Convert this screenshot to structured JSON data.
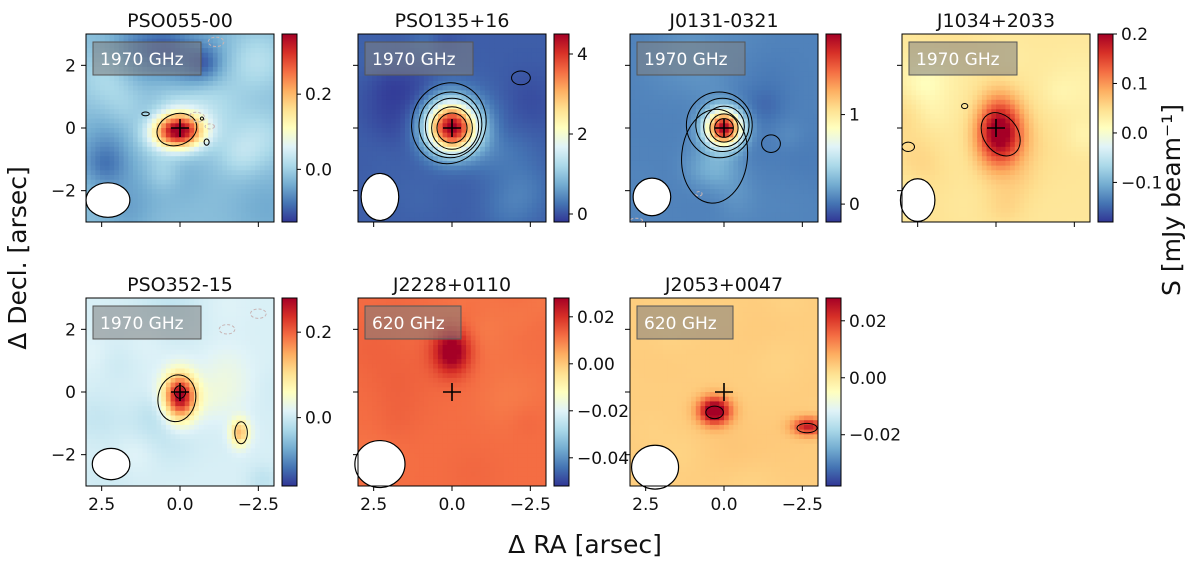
{
  "figure": {
    "xlabel": "Δ RA [arsec]",
    "ylabel": "Δ Decl. [arsec]",
    "cbar_label": "S [mJy beam⁻¹]"
  },
  "axes_common": {
    "xlim": [
      3.0,
      -3.0
    ],
    "ylim": [
      -3.0,
      3.0
    ],
    "xticks": [
      2.5,
      0.0,
      -2.5
    ],
    "xtick_labels": [
      "2.5",
      "0.0",
      "−2.5"
    ],
    "yticks": [
      2,
      0,
      -2
    ],
    "ytick_labels": [
      "2",
      "0",
      "−2"
    ],
    "colormap": [
      "#313695",
      "#4575b4",
      "#74add1",
      "#abd9e9",
      "#e0f3f8",
      "#ffffbf",
      "#fee090",
      "#fdae61",
      "#f46d43",
      "#d73027",
      "#a50026"
    ],
    "contour_color": "#000000",
    "negative_contour_color": "#c8b4b4",
    "beam_color": "#ffffff",
    "marker": "+",
    "label_box_color": "#808080"
  },
  "chart_data": [
    {
      "type": "heatmap",
      "title": "PSO055-00",
      "freq_label": "1970 GHz",
      "vmin": -0.14,
      "vmax": 0.36,
      "cbar_ticks": [
        0.0,
        0.2
      ],
      "cbar_tick_labels": [
        "0.0",
        "0.2"
      ],
      "beam": {
        "x": 2.3,
        "y": -2.3,
        "a": 0.7,
        "b": 0.55,
        "angle": 0
      },
      "sources": [
        {
          "x": 0.05,
          "y": -0.1,
          "amp": 0.38,
          "sx": 0.55,
          "sy": 0.38
        }
      ],
      "contours": [
        {
          "x": 0.1,
          "y": -0.05,
          "rx": 0.65,
          "ry": 0.5,
          "rot": -20
        },
        {
          "x": -0.85,
          "y": -0.45,
          "rx": 0.08,
          "ry": 0.1,
          "rot": 0
        },
        {
          "x": -0.7,
          "y": 0.3,
          "rx": 0.05,
          "ry": 0.05,
          "rot": 0
        },
        {
          "x": 1.1,
          "y": 0.45,
          "rx": 0.12,
          "ry": 0.06,
          "rot": 0
        }
      ],
      "neg_contours": [
        {
          "x": -0.55,
          "y": 0.35,
          "rx": 0.25,
          "ry": 0.15,
          "rot": 10
        },
        {
          "x": -0.95,
          "y": 0.05,
          "rx": 0.15,
          "ry": 0.08,
          "rot": 0
        },
        {
          "x": -1.15,
          "y": 2.75,
          "rx": 0.25,
          "ry": 0.15,
          "rot": 0
        }
      ],
      "seed": 11,
      "noise": 0.22,
      "offset": -0.02
    },
    {
      "type": "heatmap",
      "title": "PSO135+16",
      "freq_label": "1970 GHz",
      "vmin": -0.2,
      "vmax": 4.5,
      "cbar_ticks": [
        0,
        2,
        4
      ],
      "cbar_tick_labels": [
        "0",
        "2",
        "4"
      ],
      "beam": {
        "x": 2.3,
        "y": -2.2,
        "a": 0.6,
        "b": 0.75,
        "angle": 0
      },
      "sources": [
        {
          "x": 0.0,
          "y": 0.0,
          "amp": 4.3,
          "sx": 0.55,
          "sy": 0.55
        }
      ],
      "contours": [
        {
          "x": 0.0,
          "y": 0.0,
          "rx": 0.48,
          "ry": 0.48,
          "rot": 0
        },
        {
          "x": 0.0,
          "y": 0.0,
          "rx": 0.65,
          "ry": 0.68,
          "rot": 0
        },
        {
          "x": 0.0,
          "y": 0.05,
          "rx": 0.85,
          "ry": 0.9,
          "rot": 0
        },
        {
          "x": 0.05,
          "y": 0.1,
          "rx": 1.0,
          "ry": 1.05,
          "rot": 10
        },
        {
          "x": 0.1,
          "y": 0.15,
          "rx": 1.18,
          "ry": 1.3,
          "rot": 15
        },
        {
          "x": -2.2,
          "y": 1.6,
          "rx": 0.3,
          "ry": 0.22,
          "rot": 0
        }
      ],
      "neg_contours": [],
      "seed": 23,
      "noise": 0.08,
      "offset": 0.1
    },
    {
      "type": "heatmap",
      "title": "J0131-0321",
      "freq_label": "1970 GHz",
      "vmin": -0.2,
      "vmax": 1.9,
      "cbar_ticks": [
        0,
        1
      ],
      "cbar_tick_labels": [
        "0",
        "1"
      ],
      "beam": {
        "x": 2.3,
        "y": -2.2,
        "a": 0.6,
        "b": 0.6,
        "angle": 0
      },
      "sources": [
        {
          "x": 0.0,
          "y": 0.0,
          "amp": 1.85,
          "sx": 0.4,
          "sy": 0.4
        },
        {
          "x": 0.3,
          "y": -1.3,
          "amp": 0.2,
          "sx": 0.6,
          "sy": 0.5
        }
      ],
      "contours": [
        {
          "x": 0.0,
          "y": 0.0,
          "rx": 0.3,
          "ry": 0.3,
          "rot": 0
        },
        {
          "x": 0.0,
          "y": 0.0,
          "rx": 0.45,
          "ry": 0.45,
          "rot": 0
        },
        {
          "x": 0.0,
          "y": 0.05,
          "rx": 0.65,
          "ry": 0.65,
          "rot": 0
        },
        {
          "x": 0.05,
          "y": 0.1,
          "rx": 0.85,
          "ry": 0.85,
          "rot": 0
        },
        {
          "x": 0.15,
          "y": 0.1,
          "rx": 1.05,
          "ry": 1.05,
          "rot": 0
        },
        {
          "x": 0.3,
          "y": -0.9,
          "rx": 1.05,
          "ry": 1.5,
          "rot": 5
        },
        {
          "x": -1.5,
          "y": -0.5,
          "rx": 0.3,
          "ry": 0.28,
          "rot": 0
        }
      ],
      "neg_contours": [
        {
          "x": 0.8,
          "y": -2.1,
          "rx": 0.1,
          "ry": 0.07,
          "rot": 0
        },
        {
          "x": 2.8,
          "y": -2.95,
          "rx": 0.2,
          "ry": 0.07,
          "rot": 0
        }
      ],
      "seed": 37,
      "noise": 0.05,
      "offset": 0.06
    },
    {
      "type": "heatmap",
      "title": "J1034+2033",
      "freq_label": "1970 GHz",
      "vmin": -0.18,
      "vmax": 0.2,
      "cbar_ticks": [
        0.2,
        0.1,
        0.0,
        -0.1
      ],
      "cbar_tick_labels": [
        "0.2",
        "0.1",
        "0.0",
        "−0.1"
      ],
      "beam": {
        "x": 2.5,
        "y": -2.3,
        "a": 0.55,
        "b": 0.68,
        "angle": 0
      },
      "sources": [
        {
          "x": -0.1,
          "y": -0.1,
          "amp": 0.18,
          "sx": 0.5,
          "sy": 0.75
        }
      ],
      "contours": [
        {
          "x": -0.15,
          "y": -0.2,
          "rx": 0.55,
          "ry": 0.75,
          "rot": -35
        },
        {
          "x": 1.0,
          "y": 0.7,
          "rx": 0.1,
          "ry": 0.08,
          "rot": 0
        },
        {
          "x": 2.8,
          "y": -0.6,
          "rx": 0.2,
          "ry": 0.15,
          "rot": 0
        }
      ],
      "neg_contours": [],
      "seed": 53,
      "noise": 0.09,
      "offset": 0.04
    },
    {
      "type": "heatmap",
      "title": "PSO352-15",
      "freq_label": "1970 GHz",
      "vmin": -0.16,
      "vmax": 0.28,
      "cbar_ticks": [
        0.2,
        0.0
      ],
      "cbar_tick_labels": [
        "0.2",
        "0.0"
      ],
      "beam": {
        "x": 2.2,
        "y": -2.3,
        "a": 0.6,
        "b": 0.5,
        "angle": 0
      },
      "sources": [
        {
          "x": 0.0,
          "y": -0.15,
          "amp": 0.27,
          "sx": 0.35,
          "sy": 0.5
        },
        {
          "x": -1.9,
          "y": -1.3,
          "amp": 0.12,
          "sx": 0.2,
          "sy": 0.3
        }
      ],
      "contours": [
        {
          "x": 0.0,
          "y": 0.0,
          "rx": 0.18,
          "ry": 0.2,
          "rot": 0
        },
        {
          "x": 0.1,
          "y": -0.2,
          "rx": 0.6,
          "ry": 0.75,
          "rot": 10
        },
        {
          "x": -1.95,
          "y": -1.3,
          "rx": 0.2,
          "ry": 0.35,
          "rot": 0
        }
      ],
      "neg_contours": [
        {
          "x": -1.5,
          "y": 2.0,
          "rx": 0.25,
          "ry": 0.15,
          "rot": 0
        },
        {
          "x": -2.5,
          "y": 2.5,
          "rx": 0.25,
          "ry": 0.15,
          "rot": 0
        }
      ],
      "seed": 71,
      "noise": 0.1,
      "offset": 0.01
    },
    {
      "type": "heatmap",
      "title": "J2228+0110",
      "freq_label": "620 GHz",
      "vmin": -0.052,
      "vmax": 0.028,
      "cbar_ticks": [
        0.02,
        0.0,
        -0.02,
        -0.04
      ],
      "cbar_tick_labels": [
        "0.02",
        "0.00",
        "−0.02",
        "−0.04"
      ],
      "beam": {
        "x": 2.3,
        "y": -2.3,
        "a": 0.8,
        "b": 0.75,
        "angle": 0
      },
      "sources": [
        {
          "x": 0.0,
          "y": 1.3,
          "amp": 0.02,
          "sx": 0.4,
          "sy": 0.5
        }
      ],
      "contours": [],
      "neg_contours": [],
      "seed": 89,
      "noise": 0.03,
      "offset": 0.012
    },
    {
      "type": "heatmap",
      "title": "J2053+0047",
      "freq_label": "620 GHz",
      "vmin": -0.038,
      "vmax": 0.028,
      "cbar_ticks": [
        0.02,
        0.0,
        -0.02
      ],
      "cbar_tick_labels": [
        "0.02",
        "0.00",
        "−0.02"
      ],
      "beam": {
        "x": 2.2,
        "y": -2.4,
        "a": 0.75,
        "b": 0.7,
        "angle": 0
      },
      "sources": [
        {
          "x": 0.3,
          "y": -0.6,
          "amp": 0.03,
          "sx": 0.35,
          "sy": 0.3
        },
        {
          "x": -2.7,
          "y": -1.1,
          "amp": 0.02,
          "sx": 0.35,
          "sy": 0.2
        }
      ],
      "contours": [
        {
          "x": 0.3,
          "y": -0.65,
          "rx": 0.28,
          "ry": 0.2,
          "rot": 0
        },
        {
          "x": -2.65,
          "y": -1.15,
          "rx": 0.32,
          "ry": 0.15,
          "rot": 0
        }
      ],
      "neg_contours": [],
      "seed": 97,
      "noise": 0.025,
      "offset": 0.004
    }
  ]
}
